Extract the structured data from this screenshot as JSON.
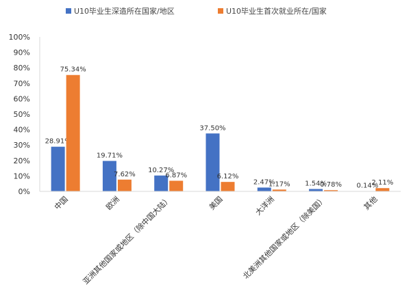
{
  "chart_data": {
    "type": "bar",
    "categories": [
      "中国",
      "欧洲",
      "亚洲其他国家或地区（除中国大陆）",
      "美国",
      "大洋洲",
      "北美洲其他国家或地区（除美国）",
      "其他"
    ],
    "series": [
      {
        "name": "U10毕业生深造所在国家/地区",
        "color": "#4472C4",
        "values": [
          28.91,
          19.71,
          10.27,
          37.5,
          2.47,
          1.54,
          0.14
        ],
        "labels": [
          "28.91%",
          "19.71%",
          "10.27%",
          "37.50%",
          "2.47%",
          "1.54%",
          "0.14%"
        ]
      },
      {
        "name": "U10毕业生首次就业所在/国家",
        "color": "#ED7D31",
        "values": [
          75.34,
          7.62,
          6.87,
          6.12,
          1.17,
          0.78,
          2.11
        ],
        "labels": [
          "75.34%",
          "7.62%",
          "6.87%",
          "6.12%",
          "1.17%",
          "0.78%",
          "2.11%"
        ]
      }
    ],
    "ylim": [
      0,
      100
    ],
    "yticks": [
      "0%",
      "10%",
      "20%",
      "30%",
      "40%",
      "50%",
      "60%",
      "70%",
      "80%",
      "90%",
      "100%"
    ],
    "grid": false,
    "legend": "top"
  }
}
